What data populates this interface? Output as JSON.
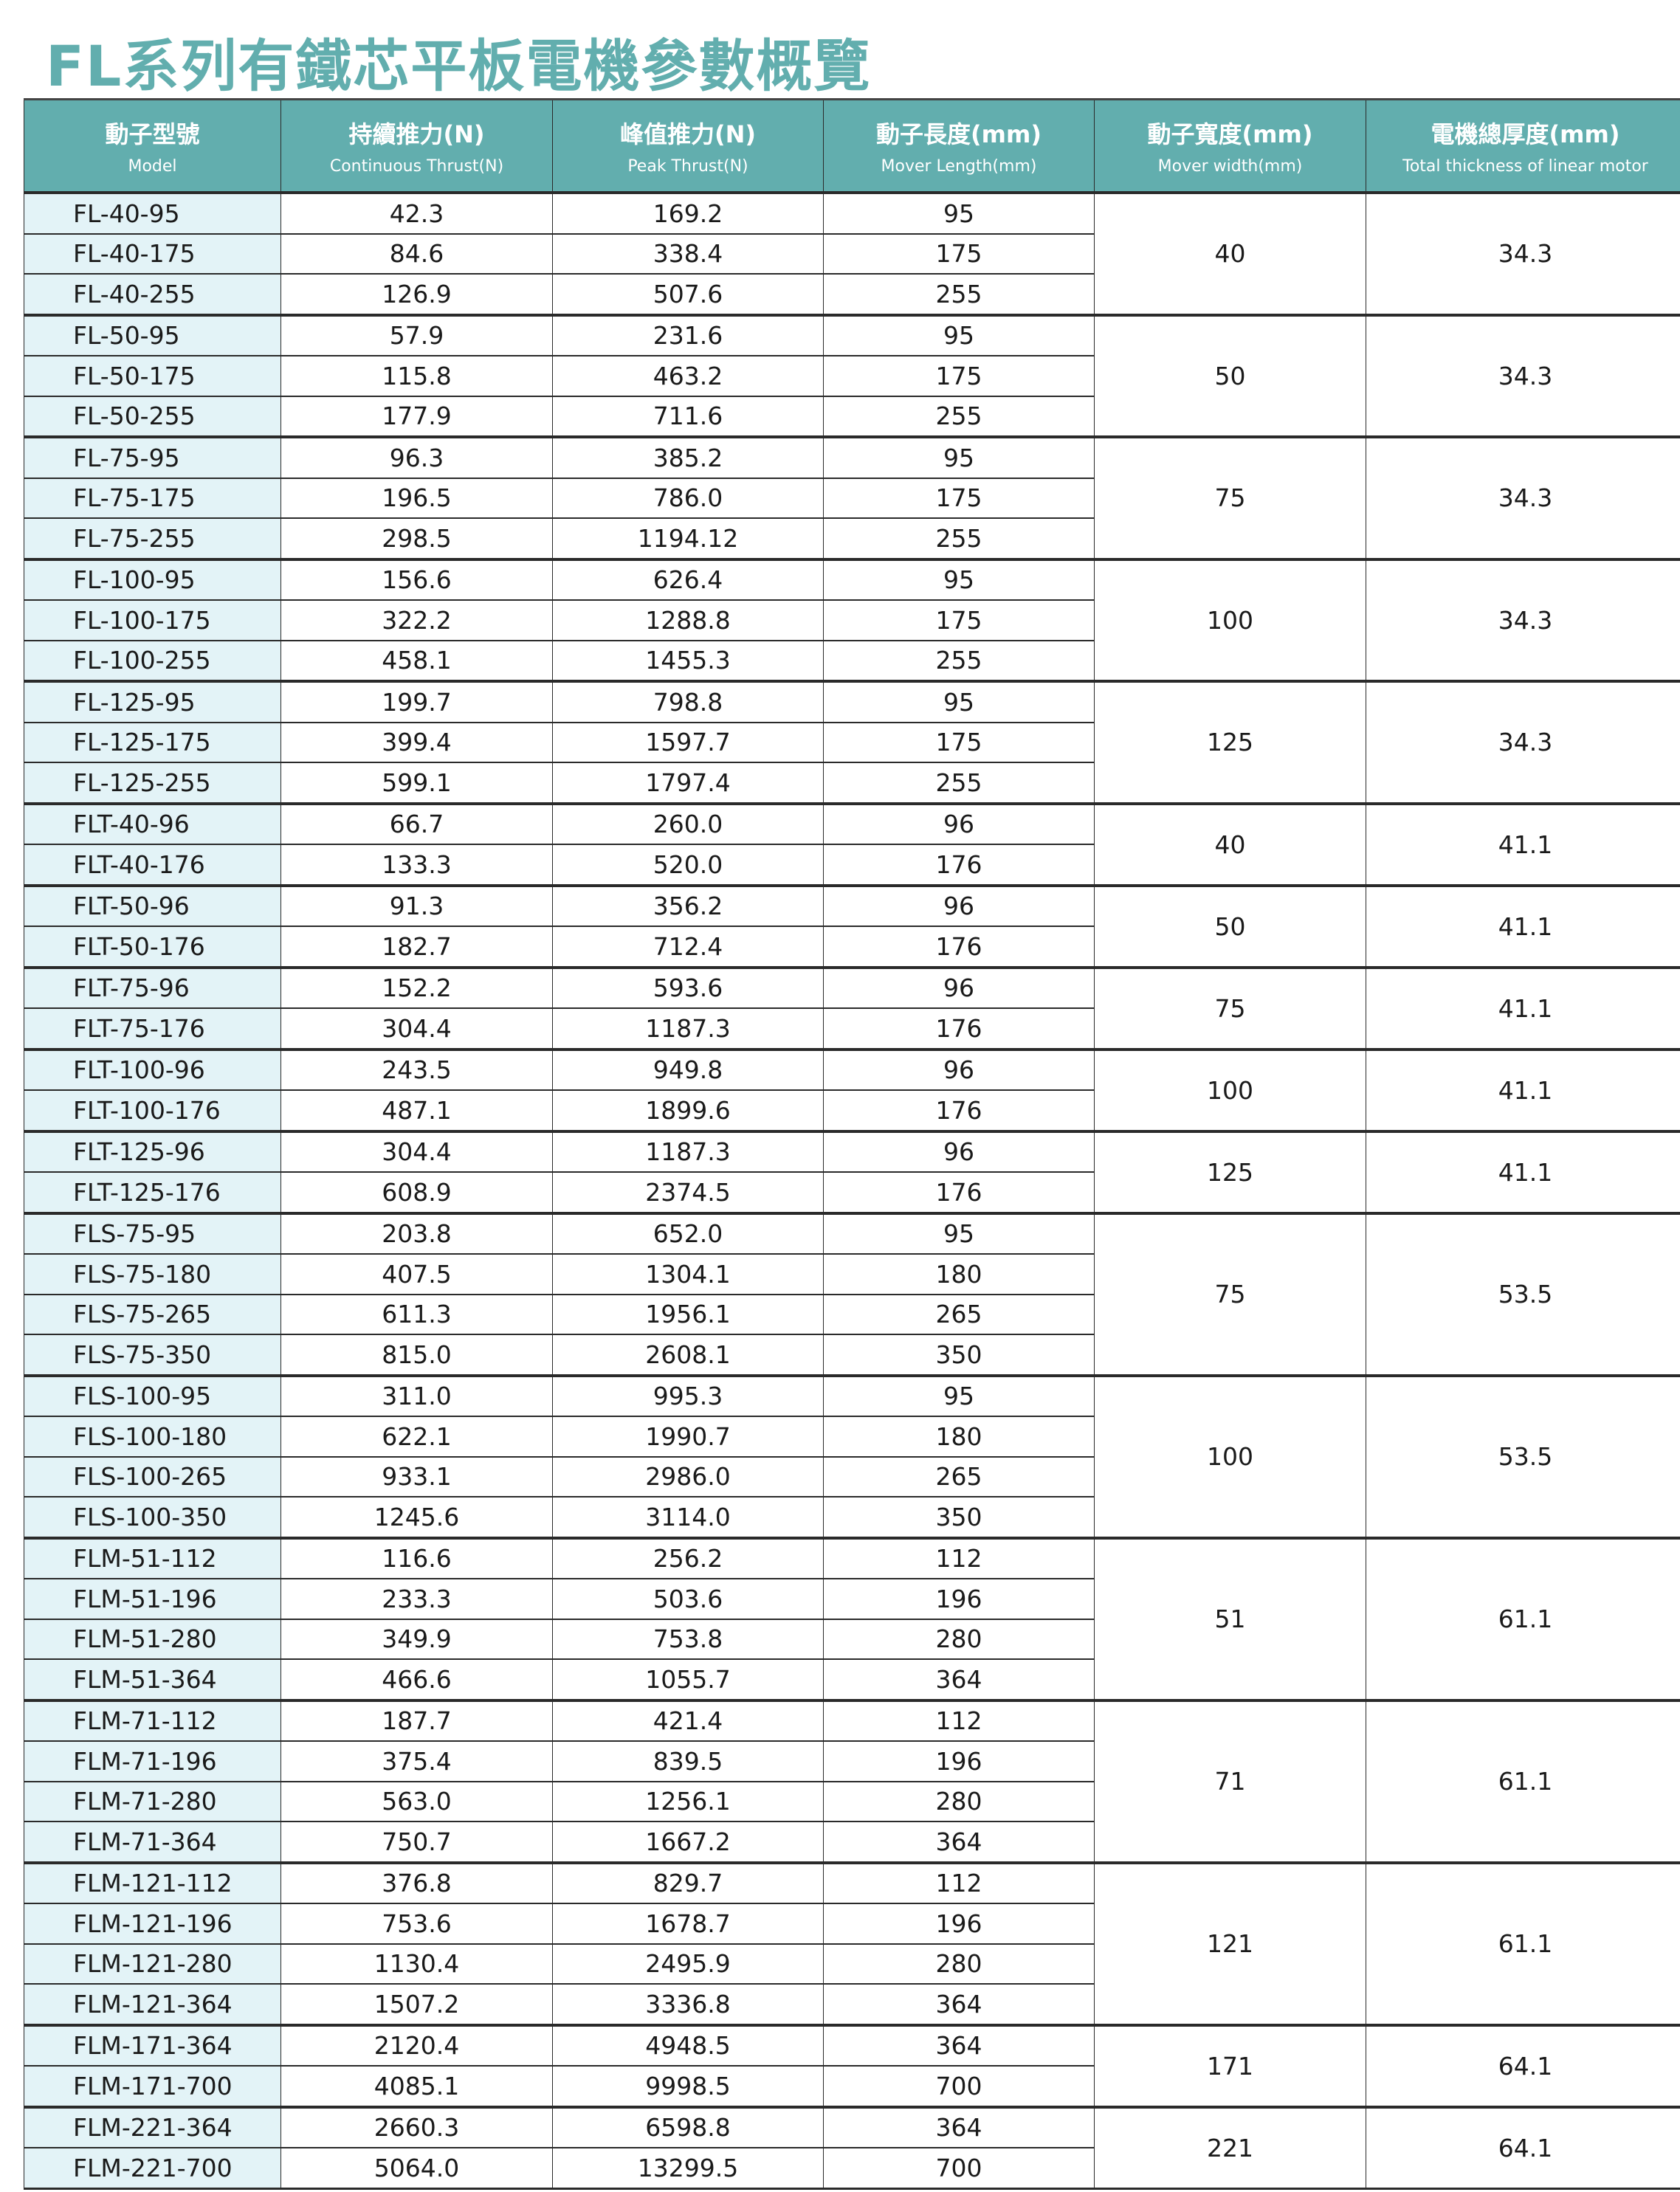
{
  "title": "FL系列有鐵芯平板電機參數概覽",
  "colors": {
    "accent": "#62aeae",
    "model_bg": "#e3f3f7"
  },
  "headers": [
    {
      "cn": "動子型號",
      "en": "Model"
    },
    {
      "cn": "持續推力(N)",
      "en": "Continuous Thrust(N)"
    },
    {
      "cn": "峰值推力(N)",
      "en": "Peak Thrust(N)"
    },
    {
      "cn": "動子長度(mm)",
      "en": "Mover Length(mm)"
    },
    {
      "cn": "動子寬度(mm)",
      "en": "Mover width(mm)"
    },
    {
      "cn": "電機總厚度(mm)",
      "en": "Total thickness of linear motor"
    }
  ],
  "groups": [
    {
      "width": "40",
      "thickness": "34.3",
      "rows": [
        [
          "FL-40-95",
          "42.3",
          "169.2",
          "95"
        ],
        [
          "FL-40-175",
          "84.6",
          "338.4",
          "175"
        ],
        [
          "FL-40-255",
          "126.9",
          "507.6",
          "255"
        ]
      ]
    },
    {
      "width": "50",
      "thickness": "34.3",
      "rows": [
        [
          "FL-50-95",
          "57.9",
          "231.6",
          "95"
        ],
        [
          "FL-50-175",
          "115.8",
          "463.2",
          "175"
        ],
        [
          "FL-50-255",
          "177.9",
          "711.6",
          "255"
        ]
      ]
    },
    {
      "width": "75",
      "thickness": "34.3",
      "rows": [
        [
          "FL-75-95",
          "96.3",
          "385.2",
          "95"
        ],
        [
          "FL-75-175",
          "196.5",
          "786.0",
          "175"
        ],
        [
          "FL-75-255",
          "298.5",
          "1194.12",
          "255"
        ]
      ]
    },
    {
      "width": "100",
      "thickness": "34.3",
      "rows": [
        [
          "FL-100-95",
          "156.6",
          "626.4",
          "95"
        ],
        [
          "FL-100-175",
          "322.2",
          "1288.8",
          "175"
        ],
        [
          "FL-100-255",
          "458.1",
          "1455.3",
          "255"
        ]
      ]
    },
    {
      "width": "125",
      "thickness": "34.3",
      "rows": [
        [
          "FL-125-95",
          "199.7",
          "798.8",
          "95"
        ],
        [
          "FL-125-175",
          "399.4",
          "1597.7",
          "175"
        ],
        [
          "FL-125-255",
          "599.1",
          "1797.4",
          "255"
        ]
      ]
    },
    {
      "width": "40",
      "thickness": "41.1",
      "rows": [
        [
          "FLT-40-96",
          "66.7",
          "260.0",
          "96"
        ],
        [
          "FLT-40-176",
          "133.3",
          "520.0",
          "176"
        ]
      ]
    },
    {
      "width": "50",
      "thickness": "41.1",
      "rows": [
        [
          "FLT-50-96",
          "91.3",
          "356.2",
          "96"
        ],
        [
          "FLT-50-176",
          "182.7",
          "712.4",
          "176"
        ]
      ]
    },
    {
      "width": "75",
      "thickness": "41.1",
      "rows": [
        [
          "FLT-75-96",
          "152.2",
          "593.6",
          "96"
        ],
        [
          "FLT-75-176",
          "304.4",
          "1187.3",
          "176"
        ]
      ]
    },
    {
      "width": "100",
      "thickness": "41.1",
      "rows": [
        [
          "FLT-100-96",
          "243.5",
          "949.8",
          "96"
        ],
        [
          "FLT-100-176",
          "487.1",
          "1899.6",
          "176"
        ]
      ]
    },
    {
      "width": "125",
      "thickness": "41.1",
      "rows": [
        [
          "FLT-125-96",
          "304.4",
          "1187.3",
          "96"
        ],
        [
          "FLT-125-176",
          "608.9",
          "2374.5",
          "176"
        ]
      ]
    },
    {
      "width": "75",
      "thickness": "53.5",
      "rows": [
        [
          "FLS-75-95",
          "203.8",
          "652.0",
          "95"
        ],
        [
          "FLS-75-180",
          "407.5",
          "1304.1",
          "180"
        ],
        [
          "FLS-75-265",
          "611.3",
          "1956.1",
          "265"
        ],
        [
          "FLS-75-350",
          "815.0",
          "2608.1",
          "350"
        ]
      ]
    },
    {
      "width": "100",
      "thickness": "53.5",
      "rows": [
        [
          "FLS-100-95",
          "311.0",
          "995.3",
          "95"
        ],
        [
          "FLS-100-180",
          "622.1",
          "1990.7",
          "180"
        ],
        [
          "FLS-100-265",
          "933.1",
          "2986.0",
          "265"
        ],
        [
          "FLS-100-350",
          "1245.6",
          "3114.0",
          "350"
        ]
      ]
    },
    {
      "width": "51",
      "thickness": "61.1",
      "rows": [
        [
          "FLM-51-112",
          "116.6",
          "256.2",
          "112"
        ],
        [
          "FLM-51-196",
          "233.3",
          "503.6",
          "196"
        ],
        [
          "FLM-51-280",
          "349.9",
          "753.8",
          "280"
        ],
        [
          "FLM-51-364",
          "466.6",
          "1055.7",
          "364"
        ]
      ]
    },
    {
      "width": "71",
      "thickness": "61.1",
      "rows": [
        [
          "FLM-71-112",
          "187.7",
          "421.4",
          "112"
        ],
        [
          "FLM-71-196",
          "375.4",
          "839.5",
          "196"
        ],
        [
          "FLM-71-280",
          "563.0",
          "1256.1",
          "280"
        ],
        [
          "FLM-71-364",
          "750.7",
          "1667.2",
          "364"
        ]
      ]
    },
    {
      "width": "121",
      "thickness": "61.1",
      "rows": [
        [
          "FLM-121-112",
          "376.8",
          "829.7",
          "112"
        ],
        [
          "FLM-121-196",
          "753.6",
          "1678.7",
          "196"
        ],
        [
          "FLM-121-280",
          "1130.4",
          "2495.9",
          "280"
        ],
        [
          "FLM-121-364",
          "1507.2",
          "3336.8",
          "364"
        ]
      ]
    },
    {
      "width": "171",
      "thickness": "64.1",
      "rows": [
        [
          "FLM-171-364",
          "2120.4",
          "4948.5",
          "364"
        ],
        [
          "FLM-171-700",
          "4085.1",
          "9998.5",
          "700"
        ]
      ]
    },
    {
      "width": "221",
      "thickness": "64.1",
      "rows": [
        [
          "FLM-221-364",
          "2660.3",
          "6598.8",
          "364"
        ],
        [
          "FLM-221-700",
          "5064.0",
          "13299.5",
          "700"
        ]
      ]
    }
  ]
}
